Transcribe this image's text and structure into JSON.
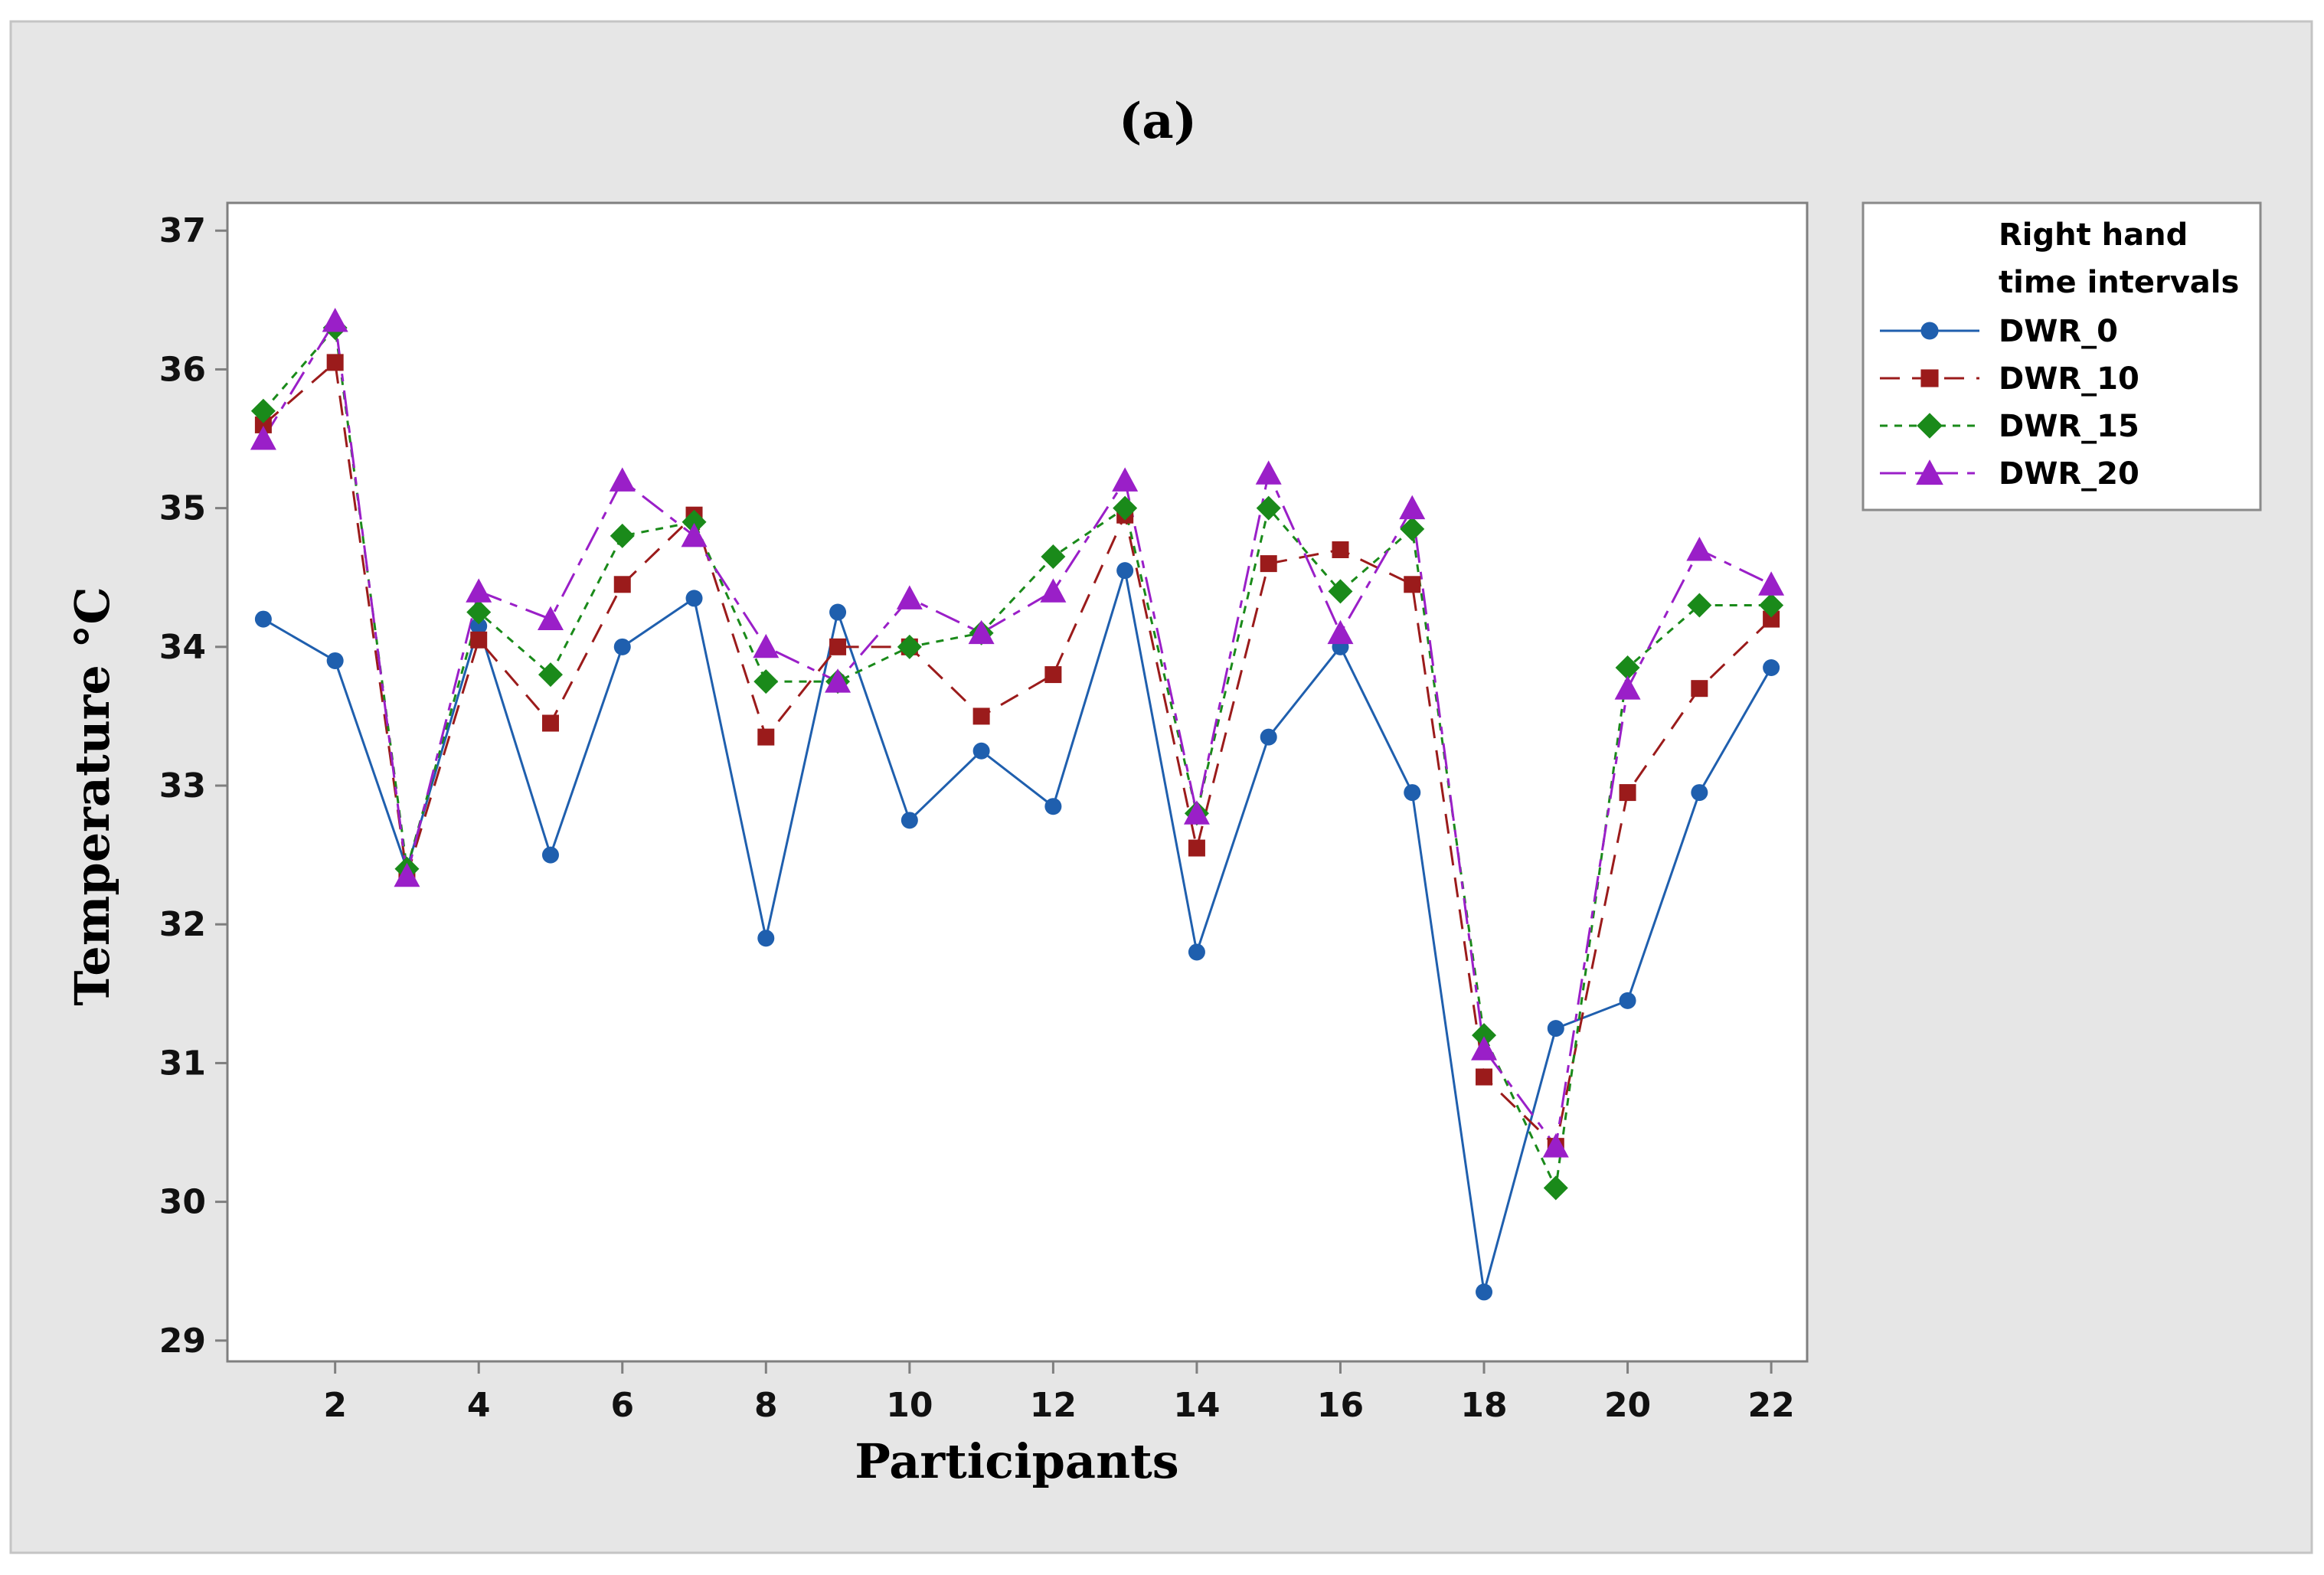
{
  "chart_data": {
    "type": "line",
    "title": "(a)",
    "xlabel": "Participants",
    "ylabel": "Temperature °C",
    "xlim": [
      0.5,
      22.5
    ],
    "ylim": [
      28.85,
      37.2
    ],
    "xticks": [
      2,
      4,
      6,
      8,
      10,
      12,
      14,
      16,
      18,
      20,
      22
    ],
    "yticks": [
      29,
      30,
      31,
      32,
      33,
      34,
      35,
      36,
      37
    ],
    "grid": false,
    "legend": {
      "title_line1": "Right hand",
      "title_line2": "time intervals",
      "placement": "right"
    },
    "x": [
      1,
      2,
      3,
      4,
      5,
      6,
      7,
      8,
      9,
      10,
      11,
      12,
      13,
      14,
      15,
      16,
      17,
      18,
      19,
      20,
      21,
      22
    ],
    "series": [
      {
        "name": "DWR_0",
        "color": "#1f5fae",
        "marker": "circle",
        "dash": "solid",
        "values": [
          34.2,
          33.9,
          32.4,
          34.15,
          32.5,
          34.0,
          34.35,
          31.9,
          34.25,
          32.75,
          33.25,
          32.85,
          34.55,
          31.8,
          33.35,
          34.0,
          32.95,
          29.35,
          31.25,
          31.45,
          32.95,
          33.85
        ]
      },
      {
        "name": "DWR_10",
        "color": "#9b1b1b",
        "marker": "square",
        "dash": "long",
        "values": [
          35.6,
          36.05,
          32.35,
          34.05,
          33.45,
          34.45,
          34.95,
          33.35,
          34.0,
          34.0,
          33.5,
          33.8,
          34.95,
          32.55,
          34.6,
          34.7,
          34.45,
          30.9,
          30.4,
          32.95,
          33.7,
          34.2
        ]
      },
      {
        "name": "DWR_15",
        "color": "#1a8a1a",
        "marker": "diamond",
        "dash": "short",
        "values": [
          35.7,
          36.3,
          32.4,
          34.25,
          33.8,
          34.8,
          34.9,
          33.75,
          33.75,
          34.0,
          34.1,
          34.65,
          35.0,
          32.8,
          35.0,
          34.4,
          34.85,
          31.2,
          30.1,
          33.85,
          34.3,
          34.3
        ]
      },
      {
        "name": "DWR_20",
        "color": "#9a1fc8",
        "marker": "triangle",
        "dash": "longshort",
        "values": [
          35.5,
          36.35,
          32.35,
          34.4,
          34.2,
          35.2,
          34.8,
          34.0,
          33.75,
          34.35,
          34.1,
          34.4,
          35.2,
          32.8,
          35.25,
          34.1,
          35.0,
          31.1,
          30.4,
          33.7,
          34.7,
          34.45
        ]
      }
    ]
  }
}
